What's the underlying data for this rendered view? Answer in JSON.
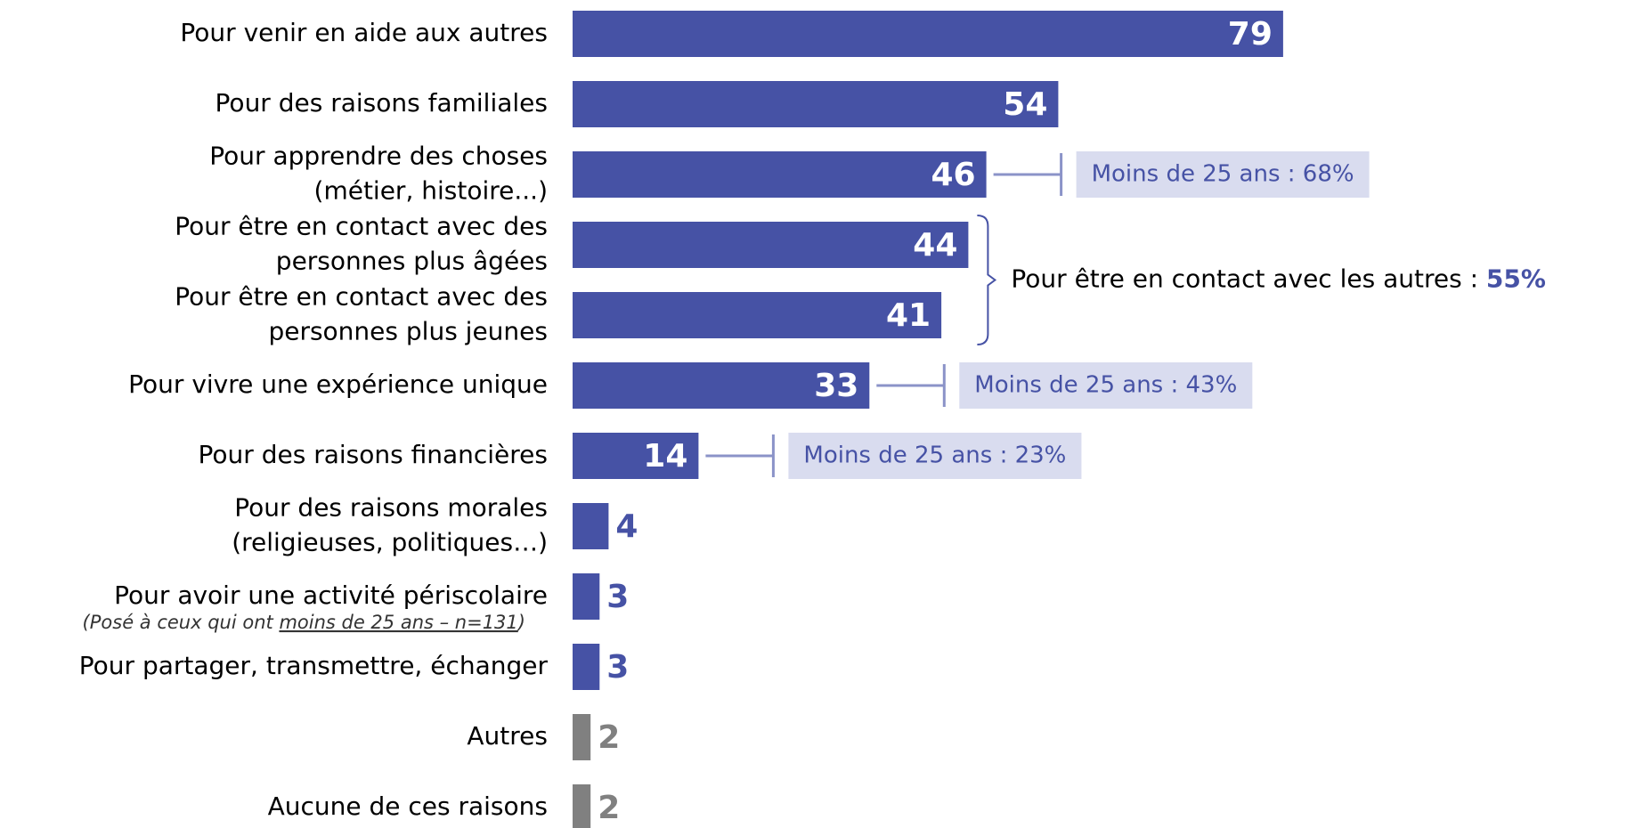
{
  "chart_data": {
    "type": "bar",
    "orientation": "horizontal",
    "categories": [
      [
        "Pour venir en aide aux autres"
      ],
      [
        "Pour des raisons familiales"
      ],
      [
        "Pour apprendre des choses",
        "(métier, histoire...)"
      ],
      [
        "Pour être en contact avec des",
        "personnes plus âgées"
      ],
      [
        "Pour être en contact avec des",
        "personnes plus jeunes"
      ],
      [
        "Pour vivre une expérience unique"
      ],
      [
        "Pour des raisons financières"
      ],
      [
        "Pour des raisons morales",
        "(religieuses, politiques…)"
      ],
      [
        "Pour avoir une activité périscolaire"
      ],
      [
        "Pour partager, transmettre, échanger"
      ],
      [
        "Autres"
      ],
      [
        "Aucune de ces raisons"
      ]
    ],
    "values": [
      79,
      54,
      46,
      44,
      41,
      33,
      14,
      4,
      3,
      3,
      2,
      2
    ],
    "colors": [
      "#4652a5",
      "#4652a5",
      "#4652a5",
      "#4652a5",
      "#4652a5",
      "#4652a5",
      "#4652a5",
      "#4652a5",
      "#4652a5",
      "#4652a5",
      "#808080",
      "#808080"
    ],
    "under25_notes": [
      null,
      null,
      "Moins de 25 ans : 68%",
      null,
      null,
      "Moins de 25 ans : 43%",
      "Moins de 25 ans : 23%",
      null,
      null,
      null,
      null,
      null
    ],
    "group_note": {
      "text": "Pour être en contact avec les autres : ",
      "value_label": "55%"
    },
    "footnote": {
      "text": "(Posé à ceux qui ont ",
      "underlined": "moins de 25 ans – n=131",
      "end": ")"
    }
  }
}
